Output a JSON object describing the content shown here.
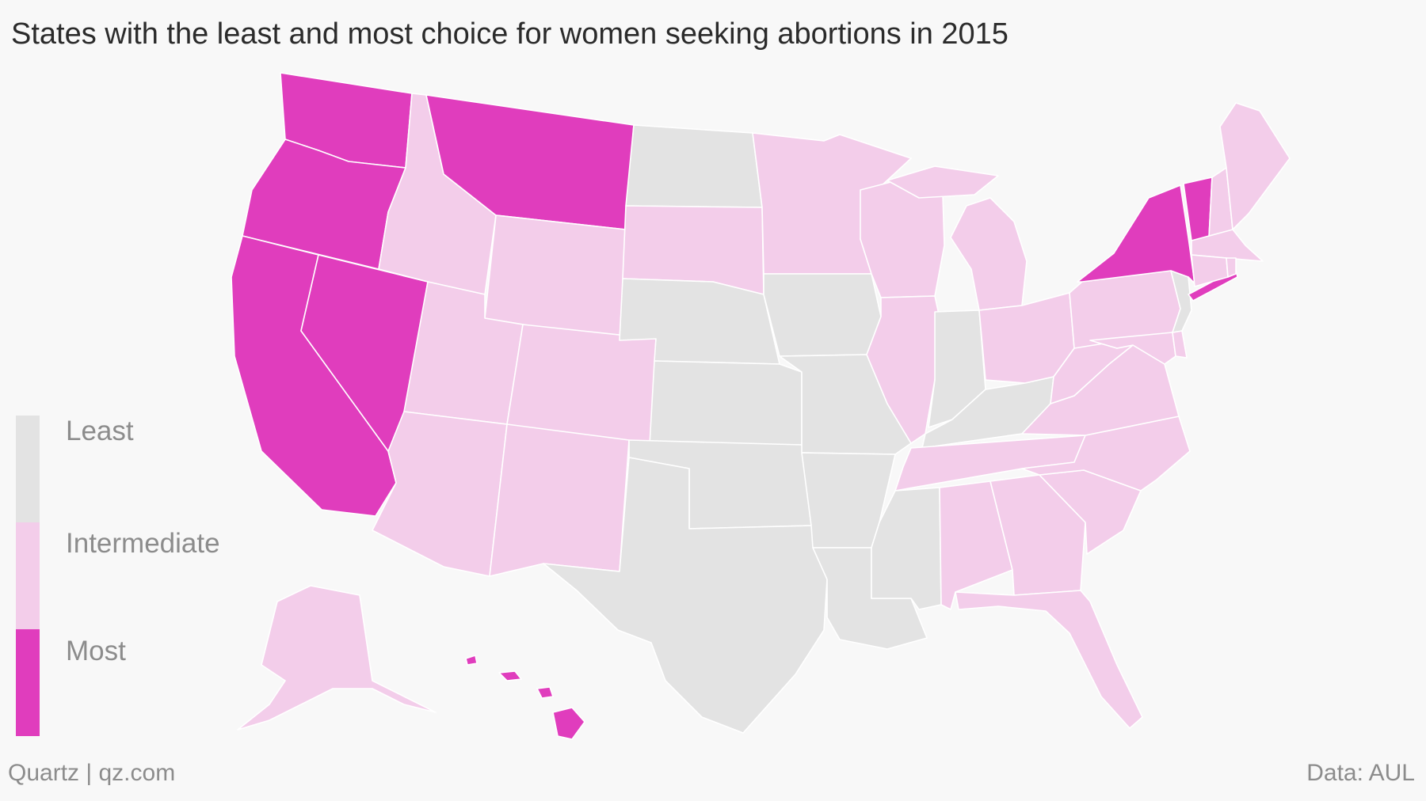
{
  "title": "States with the least and most choice for women seeking abortions in 2015",
  "colors": {
    "least": "#e3e3e3",
    "intermediate": "#f3cdea",
    "most": "#e03dbd",
    "background": "#f8f8f8",
    "border": "#ffffff"
  },
  "legend": {
    "items": [
      {
        "key": "least",
        "label": "Least"
      },
      {
        "key": "intermediate",
        "label": "Intermediate"
      },
      {
        "key": "most",
        "label": "Most"
      }
    ]
  },
  "footer": {
    "source_left": "Quartz | qz.com",
    "source_right": "Data: AUL"
  },
  "map_data": {
    "type": "choropleth",
    "categories": [
      "Least",
      "Intermediate",
      "Most"
    ],
    "states": {
      "WA": "most",
      "OR": "most",
      "CA": "most",
      "NV": "most",
      "MT": "most",
      "NY": "most",
      "VT": "most",
      "HI": "most",
      "ID": "intermediate",
      "WY": "intermediate",
      "UT": "intermediate",
      "CO": "intermediate",
      "AZ": "intermediate",
      "NM": "intermediate",
      "SD": "intermediate",
      "MN": "intermediate",
      "WI": "intermediate",
      "IL": "intermediate",
      "MI": "intermediate",
      "OH": "intermediate",
      "PA": "intermediate",
      "WV": "intermediate",
      "VA": "intermediate",
      "MD": "intermediate",
      "DE": "intermediate",
      "NC": "intermediate",
      "SC": "intermediate",
      "GA": "intermediate",
      "FL": "intermediate",
      "AL": "intermediate",
      "TN": "intermediate",
      "ME": "intermediate",
      "NH": "intermediate",
      "MA": "intermediate",
      "CT": "intermediate",
      "RI": "intermediate",
      "AK": "intermediate",
      "ND": "least",
      "NE": "least",
      "KS": "least",
      "OK": "least",
      "TX": "least",
      "IA": "least",
      "MO": "least",
      "AR": "least",
      "LA": "least",
      "MS": "least",
      "IN": "least",
      "KY": "least",
      "NJ": "least"
    }
  }
}
